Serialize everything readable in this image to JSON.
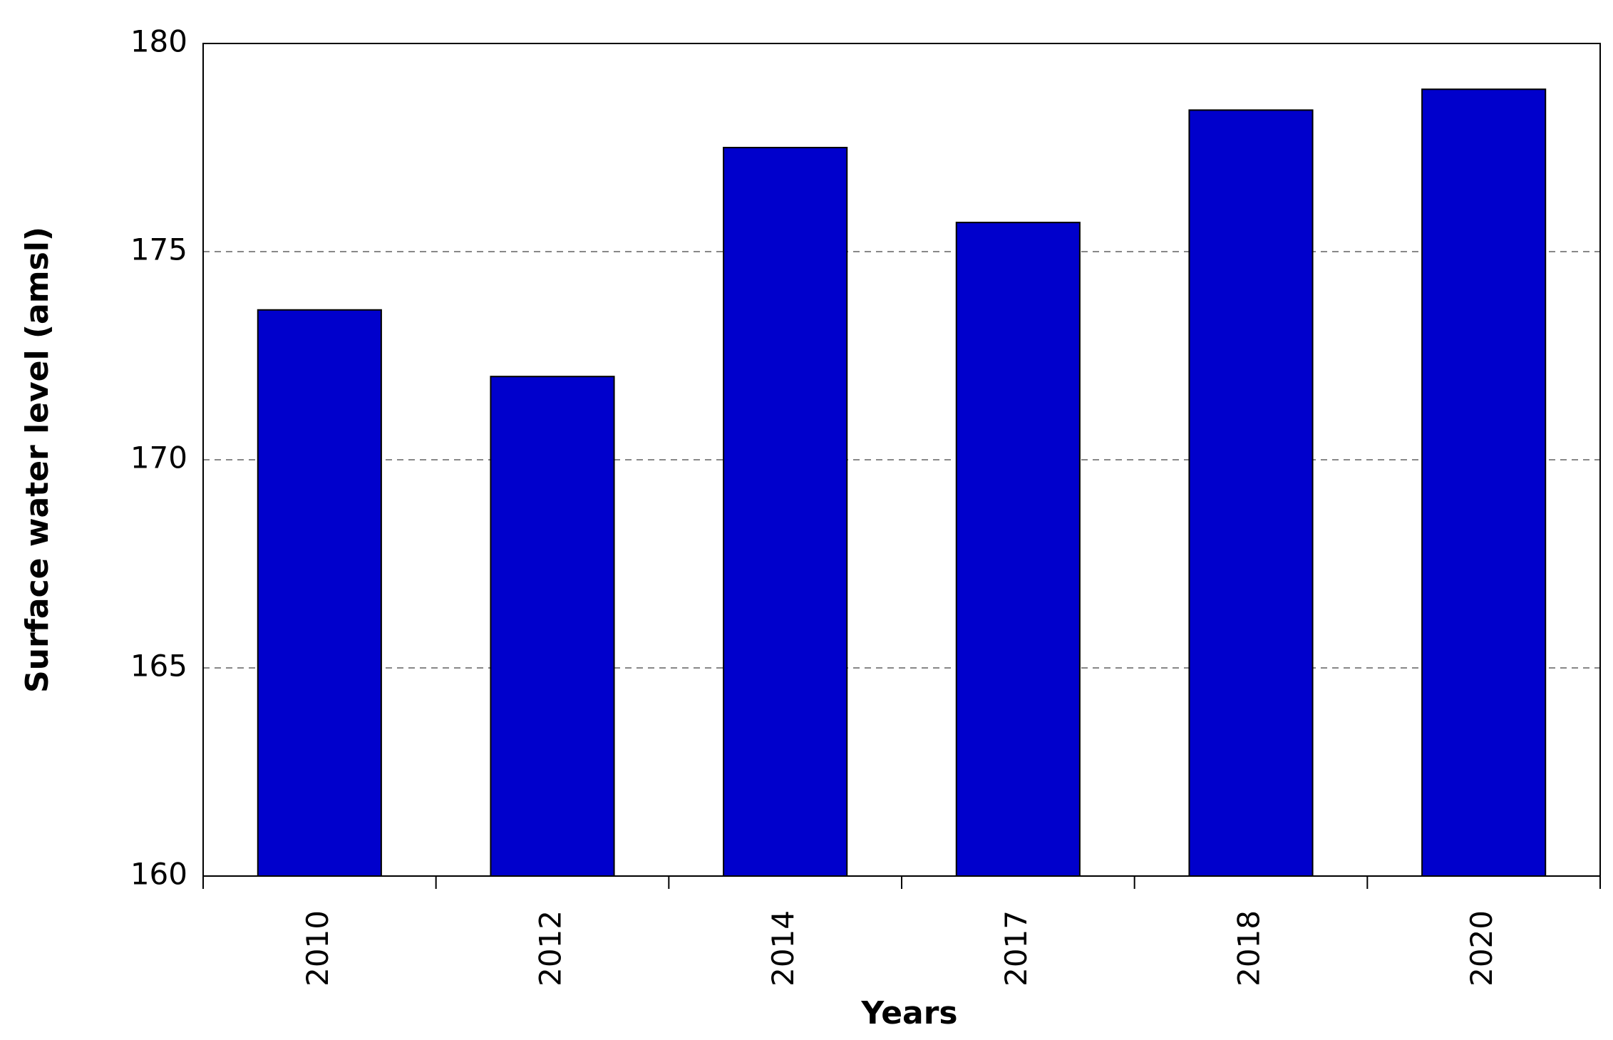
{
  "chart_data": {
    "type": "bar",
    "x_label": "Years",
    "y_label": "Surface water level (amsl)",
    "categories": [
      "2010",
      "2012",
      "2014",
      "2017",
      "2018",
      "2020"
    ],
    "values": [
      173.6,
      172.0,
      177.5,
      175.7,
      178.4,
      178.9
    ],
    "color": "#0000cc",
    "ylim": [
      160,
      180
    ],
    "yticks": [
      160,
      165,
      170,
      175,
      180
    ],
    "grid": true
  }
}
